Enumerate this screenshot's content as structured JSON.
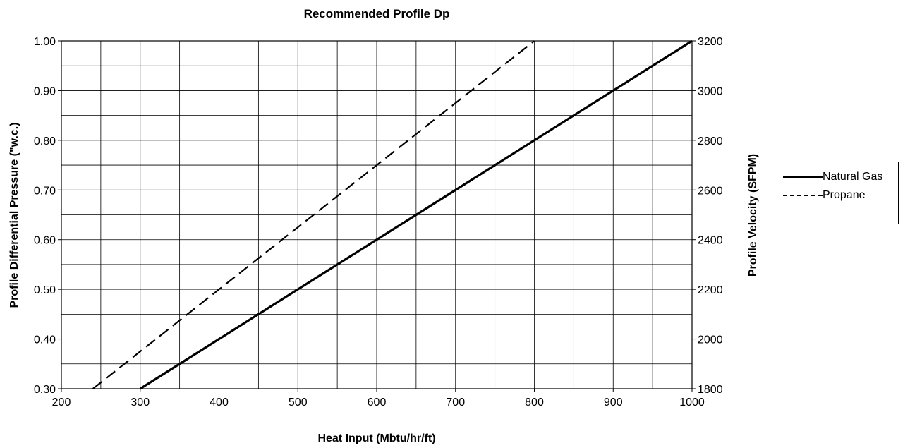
{
  "chart_data": {
    "type": "line",
    "title": "Recommended Profile Dp",
    "xlabel": "Heat Input (Mbtu/hr/ft)",
    "ylabel": "Profile Differential Pressure (\"w.c.)",
    "y2label": "Profile Velocity (SFPM)",
    "xlim": [
      200,
      1000
    ],
    "ylim": [
      0.3,
      1.0
    ],
    "y2lim": [
      1800,
      3200
    ],
    "x_ticks": [
      "200",
      "300",
      "400",
      "500",
      "600",
      "700",
      "800",
      "900",
      "1000"
    ],
    "y_ticks": [
      "0.30",
      "0.40",
      "0.50",
      "0.60",
      "0.70",
      "0.80",
      "0.90",
      "1.00"
    ],
    "y2_ticks": [
      "1800",
      "2000",
      "2200",
      "2400",
      "2600",
      "2800",
      "3000",
      "3200"
    ],
    "grid": true,
    "legend_position": "right",
    "series": [
      {
        "name": "Natural Gas",
        "style": "solid",
        "color": "#000000",
        "x": [
          300,
          1000
        ],
        "y": [
          0.3,
          1.0
        ]
      },
      {
        "name": "Propane",
        "style": "dashed",
        "color": "#000000",
        "x": [
          240,
          800
        ],
        "y": [
          0.3,
          1.0
        ]
      }
    ]
  }
}
